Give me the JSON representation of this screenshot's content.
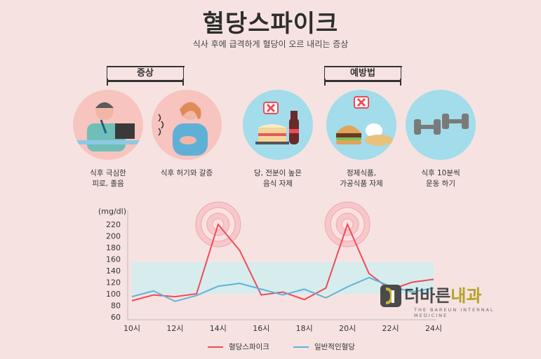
{
  "header": {
    "title": "혈당스파이크",
    "subtitle": "식사 후에 급격하게 혈당이 오르 내리는 증상"
  },
  "sections": {
    "symptoms_label": "증상",
    "prevention_label": "예방법"
  },
  "symptoms": [
    {
      "caption_line1": "식후 극심한",
      "caption_line2": "피로, 졸음",
      "icon": "tired-worker-icon"
    },
    {
      "caption_line1": "식후 허기와 갈증",
      "caption_line2": "",
      "icon": "hungry-woman-icon"
    }
  ],
  "prevention": [
    {
      "caption_line1": "당, 전분이 높은",
      "caption_line2": "음식 자제",
      "icon": "cake-cola-icon"
    },
    {
      "caption_line1": "정제식품,",
      "caption_line2": "가공식품 자제",
      "icon": "processed-food-icon"
    },
    {
      "caption_line1": "식후 10분씩",
      "caption_line2": "운동 하기",
      "icon": "dumbbell-icon"
    }
  ],
  "colors": {
    "spike": "#ef4a5c",
    "normal": "#5cb4dc",
    "band": "#d7ecec",
    "circle": "#a3dcea",
    "circle_pink": "#f7c4bf"
  },
  "logo": {
    "text_main": "더바른",
    "text_accent": "내과",
    "subtext": "THE BAREUN INTERNAL MEDICINE"
  },
  "chart_data": {
    "type": "line",
    "ylabel": "(mg/dl)",
    "ylim": [
      60,
      230
    ],
    "yticks": [
      "220",
      "200",
      "180",
      "160",
      "140",
      "120",
      "100",
      "80",
      "60"
    ],
    "xticks": [
      "10시",
      "12시",
      "14시",
      "16시",
      "18시",
      "20시",
      "22시",
      "24시"
    ],
    "x": [
      10,
      11,
      12,
      13,
      14,
      15,
      16,
      17,
      18,
      19,
      20,
      21,
      22,
      23,
      24
    ],
    "band": [
      100,
      155
    ],
    "series": [
      {
        "name": "혈당스파이크",
        "values": [
          88,
          98,
          95,
          100,
          220,
          175,
          98,
          103,
          90,
          110,
          220,
          135,
          107,
          120,
          125
        ]
      },
      {
        "name": "일반적인혈당",
        "values": [
          95,
          105,
          87,
          97,
          113,
          118,
          108,
          98,
          108,
          93,
          112,
          128,
          113,
          103,
          110
        ]
      }
    ]
  }
}
